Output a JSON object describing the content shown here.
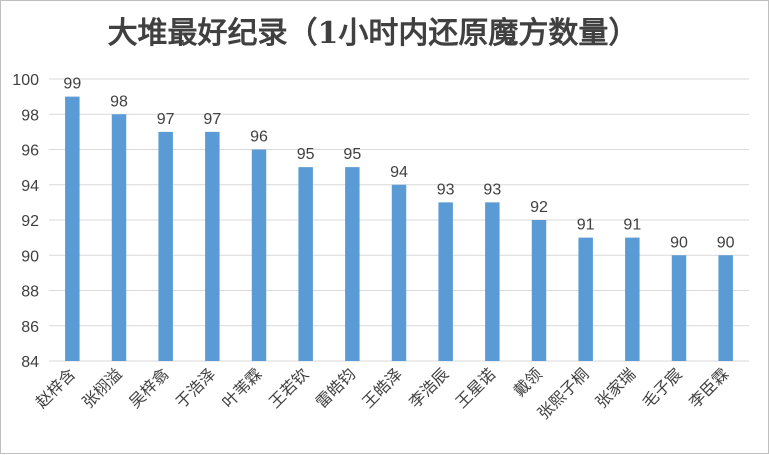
{
  "chart_data": {
    "type": "bar",
    "title": "大堆最好纪录（1小时内还原魔方数量）",
    "categories": [
      "赵梓含",
      "张栩溢",
      "吴梓翕",
      "于浩泽",
      "叶苇霖",
      "王若钦",
      "雷皓钧",
      "王皓泽",
      "李浩辰",
      "王星诺",
      "戴领",
      "张熙子桐",
      "张家瑞",
      "毛子宸",
      "李臣霖"
    ],
    "values": [
      99,
      98,
      97,
      97,
      96,
      95,
      95,
      94,
      93,
      93,
      92,
      91,
      91,
      90,
      90
    ],
    "ylim": [
      84,
      100
    ],
    "yticks": [
      84,
      86,
      88,
      90,
      92,
      94,
      96,
      98,
      100
    ],
    "grid": true,
    "data_labels": true,
    "bar_color": "#5b9bd5",
    "legend": "none"
  }
}
